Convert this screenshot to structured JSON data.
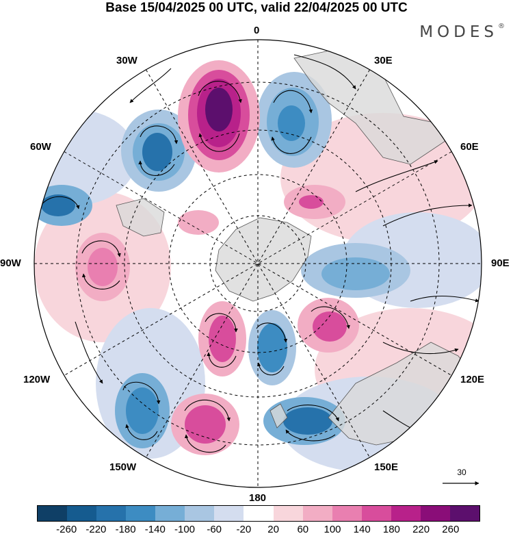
{
  "header": {
    "title": "Base 15/04/2025 00 UTC, valid 22/04/2025 00 UTC",
    "brand": "MODES",
    "brand_mark": "®"
  },
  "map": {
    "projection": "south-polar-stereographic",
    "longitude_labels": {
      "top": "0",
      "top_right": "30E",
      "right_upper": "60E",
      "right": "90E",
      "right_lower": "120E",
      "bottom_right": "150E",
      "bottom": "180",
      "bottom_left": "150W",
      "left_lower": "120W",
      "left": "90W",
      "left_upper": "60W",
      "top_left": "30W"
    },
    "vector_reference": "30"
  },
  "colorbar": {
    "ticks": [
      "-260",
      "-220",
      "-180",
      "-140",
      "-100",
      "-60",
      "-20",
      "20",
      "60",
      "100",
      "140",
      "180",
      "220",
      "260"
    ],
    "colors": [
      "#0f3f66",
      "#155b8f",
      "#2672ab",
      "#3d8cc2",
      "#76aed6",
      "#a9c6e2",
      "#d4ddef",
      "#ffffff",
      "#f8d6dc",
      "#f2adc4",
      "#e97fb0",
      "#d84d9c",
      "#b8218a",
      "#8a0d78",
      "#5c0f6d"
    ]
  }
}
